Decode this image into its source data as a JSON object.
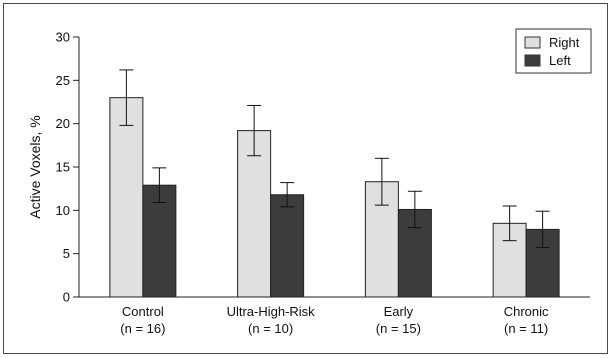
{
  "chart_data": {
    "type": "bar",
    "title": "",
    "xlabel": "",
    "ylabel": "Active Voxels, %",
    "ylim": [
      0,
      30
    ],
    "yticks": [
      0,
      5,
      10,
      15,
      20,
      25,
      30
    ],
    "categories": [
      "Control",
      "Ultra-High-Risk",
      "Early",
      "Chronic"
    ],
    "category_sublabels": [
      "(n = 16)",
      "(n = 10)",
      "(n = 15)",
      "(n = 11)"
    ],
    "series": [
      {
        "name": "Right",
        "color": "#e0e0e0",
        "values": [
          23.0,
          19.2,
          13.3,
          8.5
        ],
        "error": [
          3.2,
          2.9,
          2.7,
          2.0
        ]
      },
      {
        "name": "Left",
        "color": "#3c3c3c",
        "values": [
          12.9,
          11.8,
          10.1,
          7.8
        ],
        "error": [
          2.0,
          1.4,
          2.1,
          2.1
        ]
      }
    ],
    "legend_position": "top-right",
    "grid": false
  }
}
